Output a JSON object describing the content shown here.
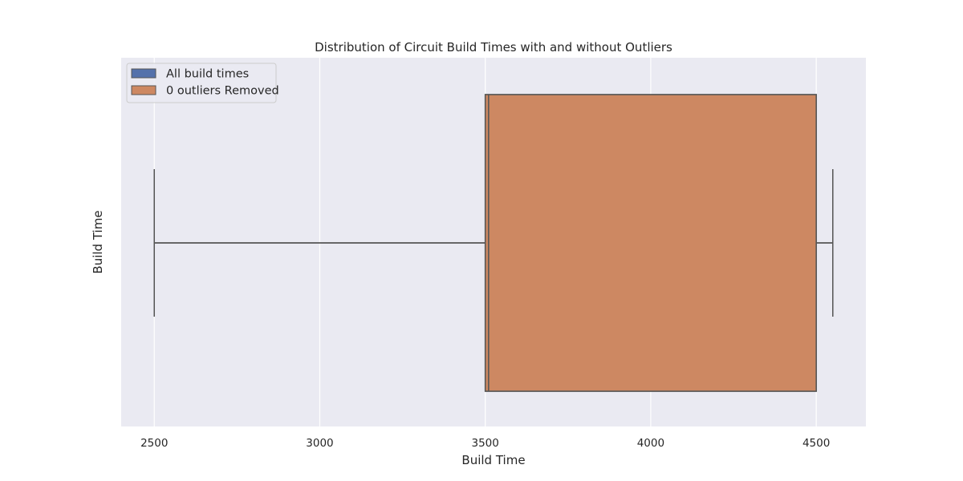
{
  "chart_data": {
    "type": "box",
    "orientation": "horizontal",
    "title": "Distribution of Circuit Build Times with and without Outliers",
    "xlabel": "Build Time",
    "ylabel": "Build Time",
    "xlim": [
      2400,
      4650
    ],
    "xticks": [
      2500,
      3000,
      3500,
      4000,
      4500
    ],
    "grid": true,
    "legend_position": "top-left",
    "series": [
      {
        "name": "All build times",
        "color": "#5471ab",
        "whisker_low": 2500,
        "q1": 3500,
        "median": 3510,
        "q3": 4500,
        "whisker_high": 4550
      },
      {
        "name": "0 outliers Removed",
        "color": "#cd8862",
        "whisker_low": 2500,
        "q1": 3500,
        "median": 3510,
        "q3": 4500,
        "whisker_high": 4550
      }
    ]
  },
  "colors": {
    "plot_background": "#eaeaf2",
    "grid": "#ffffff",
    "box_edge": "#555555"
  }
}
